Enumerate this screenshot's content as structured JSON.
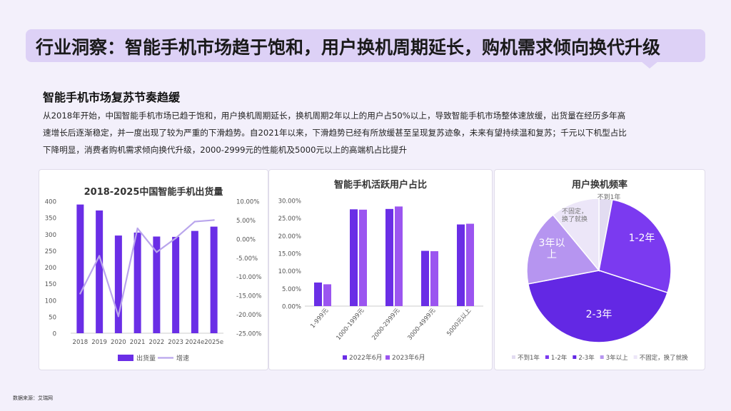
{
  "header": {
    "title": "行业洞察：智能手机市场趋于饱和，用户换机周期延长，购机需求倾向换代升级"
  },
  "section": {
    "subtitle": "智能手机市场复苏节奏趋缓",
    "body_line1": "从2018年开始，中国智能手机市场已趋于饱和，用户换机周期延长，换机周期2年以上的用户占50%以上，导致智能手机市场整体速放缓，出货量在经历多年高",
    "body_line2": "速增长后逐渐稳定，并一度出现了较为严重的下滑趋势。自2021年以来，下滑趋势已经有所放缓甚至呈现复苏迹象，未来有望持续温和复苏；千元以下机型占比",
    "body_line3": "下降明显，消费者购机需求倾向换代升级，2000-2999元的性能机及5000元以上的高端机占比提升"
  },
  "colors": {
    "primary": "#6a2ee6",
    "light": "#b9a5ec",
    "secondary": "#9b55f0",
    "bg": "#f3f0fb",
    "title_bg": "#ddd1f6"
  },
  "chart_data": [
    {
      "type": "bar",
      "title": "2018-2025中国智能手机出货量",
      "categories": [
        "2018",
        "2019",
        "2020",
        "2021",
        "2022",
        "2023",
        "2024e",
        "2025e"
      ],
      "series": [
        {
          "name": "出货量",
          "type": "bar",
          "axis": "left",
          "values": [
            390,
            372,
            296,
            305,
            293,
            292,
            310,
            323
          ]
        },
        {
          "name": "增速",
          "type": "line",
          "axis": "right",
          "values": [
            -14.5,
            -4.5,
            -20.5,
            2.8,
            -3.5,
            0.2,
            4.6,
            5.0
          ]
        }
      ],
      "y_left": {
        "min": 0,
        "max": 400,
        "ticks": [
          "0",
          "50",
          "100",
          "150",
          "200",
          "250",
          "300",
          "350",
          "400"
        ]
      },
      "y_right": {
        "min": -25,
        "max": 10,
        "ticks": [
          "-25.00%",
          "-20.00%",
          "-15.00%",
          "-10.00%",
          "-5.00%",
          "0.00%",
          "5.00%",
          "10.00%"
        ]
      },
      "legend_position": "bottom"
    },
    {
      "type": "bar",
      "title": "智能手机活跃用户占比",
      "categories": [
        "1-999元",
        "1000-1999元",
        "2000-2999元",
        "3000-4999元",
        "5000元以上"
      ],
      "series": [
        {
          "name": "2022年6月",
          "values": [
            6.7,
            27.5,
            27.6,
            15.7,
            23.2
          ]
        },
        {
          "name": "2023年6月",
          "values": [
            6.2,
            27.4,
            28.3,
            15.6,
            23.4
          ]
        }
      ],
      "y": {
        "min": 0,
        "max": 30,
        "ticks": [
          "0.00%",
          "5.00%",
          "10.00%",
          "15.00%",
          "20.00%",
          "25.00%",
          "30.00%"
        ]
      },
      "legend_position": "bottom"
    },
    {
      "type": "pie",
      "title": "用户换机频率",
      "slices": [
        {
          "name": "不到1年",
          "label": "不到1年",
          "value": 3,
          "color": "#e2dcf1"
        },
        {
          "name": "1-2年",
          "label": "1-2年",
          "value": 27,
          "color": "#7b3af0"
        },
        {
          "name": "2-3年",
          "label": "2-3年",
          "value": 42,
          "color": "#6328e4"
        },
        {
          "name": "3年以上",
          "label": "3年以\n上",
          "value": 17,
          "color": "#b695f0"
        },
        {
          "name": "不固定，换了就换",
          "label": "不固定，\n换了就换",
          "value": 11,
          "color": "#ece6f8"
        }
      ],
      "legend_position": "bottom"
    }
  ],
  "footer": {
    "source": "数据来源：艾瑞网"
  }
}
